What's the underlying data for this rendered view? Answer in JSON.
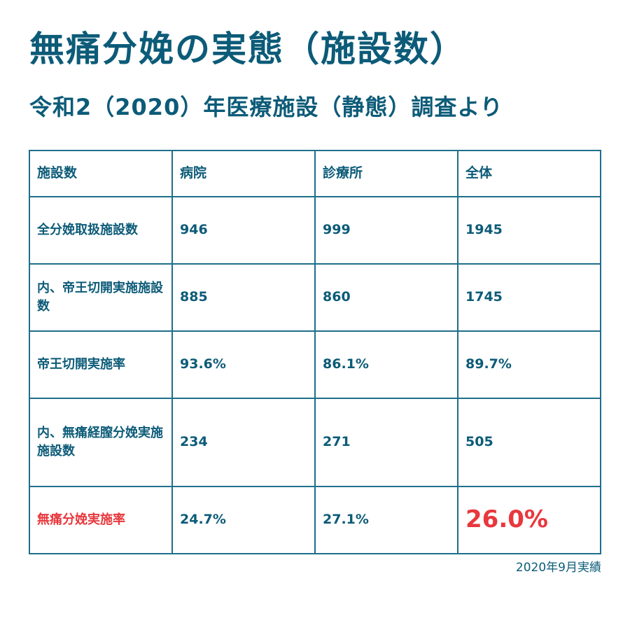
{
  "title": "無痛分娩の実態（施設数）",
  "subtitle": "令和2（2020）年医療施設（静態）調査より",
  "colors": {
    "primary": "#0c5b78",
    "highlight": "#e8383d",
    "border": "#1f6f8b"
  },
  "table": {
    "header": [
      "施設数",
      "病院",
      "診療所",
      "全体"
    ],
    "rows": [
      {
        "label": "全分娩取扱施設数",
        "hospital": "946",
        "clinic": "999",
        "total": "1945"
      },
      {
        "label": "内、帝王切開実施施設数",
        "hospital": "885",
        "clinic": "860",
        "total": "1745"
      },
      {
        "label": "帝王切開実施率",
        "hospital": "93.6%",
        "clinic": "86.1%",
        "total": "89.7%"
      },
      {
        "label": "内、無痛経膣分娩実施施設数",
        "hospital": "234",
        "clinic": "271",
        "total": "505"
      },
      {
        "label": "無痛分娩実施率",
        "hospital": "24.7%",
        "clinic": "27.1%",
        "total": "26.0%"
      }
    ]
  },
  "note": "2020年9月実績"
}
